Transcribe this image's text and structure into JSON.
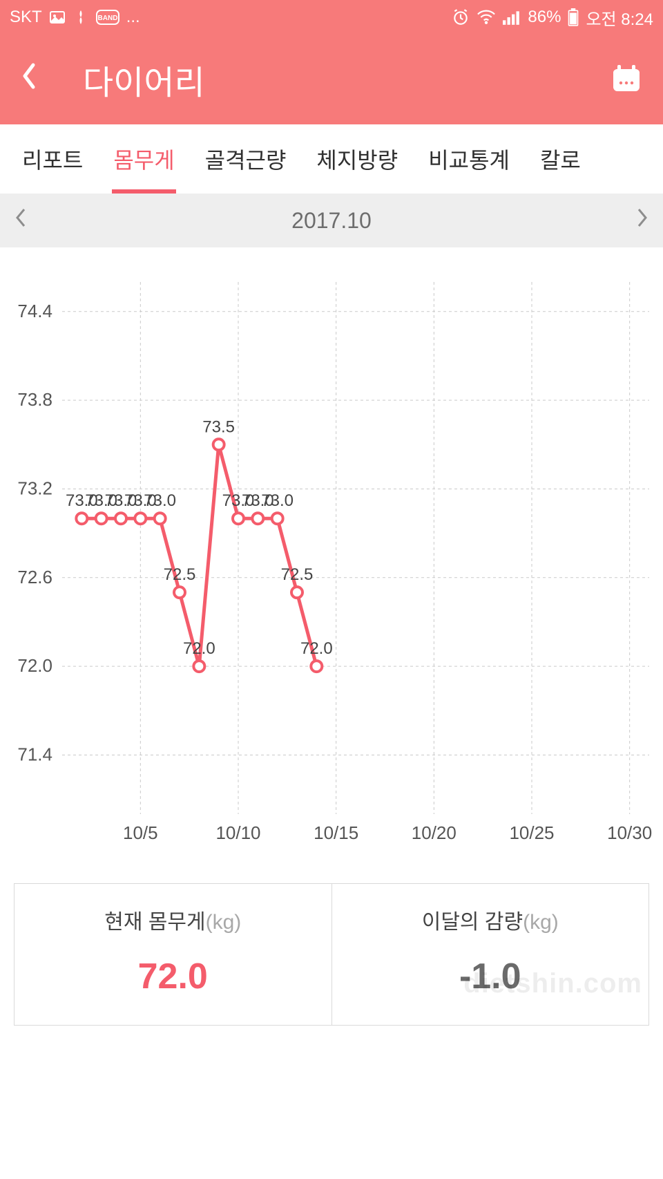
{
  "status_bar": {
    "carrier": "SKT",
    "ellipsis": "...",
    "battery_text": "86%",
    "time_text": "오전 8:24"
  },
  "app_bar": {
    "title": "다이어리"
  },
  "tabs": {
    "items": [
      "리포트",
      "몸무게",
      "골격근량",
      "체지방량",
      "비교통계",
      "칼로"
    ],
    "active_index": 1
  },
  "month_nav": {
    "label": "2017.10"
  },
  "chart": {
    "type": "line",
    "ylim": [
      71.0,
      74.6
    ],
    "yticks": [
      71.4,
      72.0,
      72.6,
      73.2,
      73.8,
      74.4
    ],
    "xlim": [
      1,
      31
    ],
    "xticks": [
      5,
      10,
      15,
      20,
      25,
      30
    ],
    "xtick_labels": [
      "10/5",
      "10/10",
      "10/15",
      "10/20",
      "10/25",
      "10/30"
    ],
    "line_color": "#f45c6b",
    "line_width": 5,
    "marker_radius": 8,
    "marker_fill": "#ffffff",
    "marker_stroke": "#f45c6b",
    "grid_color": "#c9c9c9",
    "grid_dash": "4 4",
    "background_color": "#ffffff",
    "tick_font_size": 26,
    "point_label_font_size": 24,
    "data": [
      {
        "x": 2,
        "y": 73.0,
        "label": "73.0"
      },
      {
        "x": 3,
        "y": 73.0,
        "label": "73.0"
      },
      {
        "x": 4,
        "y": 73.0,
        "label": "73.0"
      },
      {
        "x": 5,
        "y": 73.0,
        "label": "73.0"
      },
      {
        "x": 6,
        "y": 73.0,
        "label": "73.0"
      },
      {
        "x": 7,
        "y": 72.5,
        "label": "72.5"
      },
      {
        "x": 8,
        "y": 72.0,
        "label": "72.0"
      },
      {
        "x": 9,
        "y": 73.5,
        "label": "73.5"
      },
      {
        "x": 10,
        "y": 73.0,
        "label": "73.0"
      },
      {
        "x": 11,
        "y": 73.0,
        "label": "73.0"
      },
      {
        "x": 12,
        "y": 73.0,
        "label": "73.0"
      },
      {
        "x": 13,
        "y": 72.5,
        "label": "72.5"
      },
      {
        "x": 14,
        "y": 72.0,
        "label": "72.0"
      }
    ]
  },
  "summary": {
    "left": {
      "label": "현재 몸무게",
      "unit": "(kg)",
      "value": "72.0"
    },
    "right": {
      "label": "이달의 감량",
      "unit": "(kg)",
      "value": "-1.0"
    }
  },
  "watermark": "dietshin.com",
  "colors": {
    "accent": "#f45c6b",
    "header_bg": "#f77a7a",
    "text_dark": "#303030",
    "text_mid": "#6d6d6d",
    "border": "#d9d9d9"
  }
}
